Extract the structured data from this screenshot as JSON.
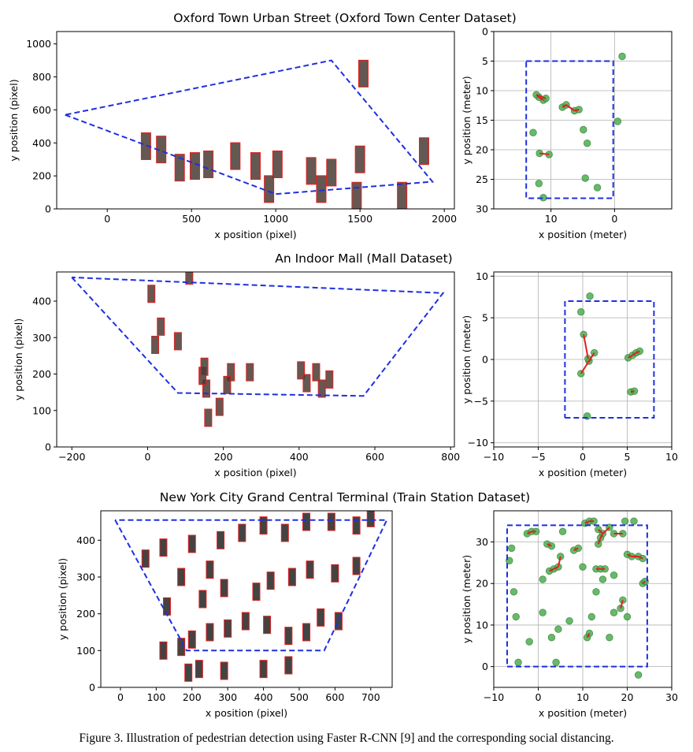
{
  "figure_caption": "Figure 3. Illustration of pedestrian detection using Faster R-CNN [9] and the corresponding social distancing.",
  "colors": {
    "region": "#1f2fe0",
    "point_fill": "#4caf50",
    "point_stroke": "#2e7d32",
    "link": "#e02020",
    "box": "#e02020",
    "grid": "#b0b0b0"
  },
  "chart_data": [
    {
      "type": "image-plot",
      "title": "Oxford Town Urban Street (Oxford Town Center Dataset)",
      "xlabel": "x position (pixel)",
      "ylabel": "y position (pixel)",
      "xlim": [
        -300,
        2060
      ],
      "ylim": [
        1075,
        0
      ],
      "xticks": [
        0,
        500,
        1000,
        1500,
        2000
      ],
      "yticks": [
        0,
        200,
        400,
        600,
        800,
        1000
      ],
      "image_extent": [
        0,
        1920,
        0,
        1080
      ],
      "region": [
        [
          -250,
          570
        ],
        [
          1000,
          90
        ],
        [
          1930,
          165
        ],
        [
          1330,
          900
        ],
        [
          -250,
          570
        ]
      ],
      "detections": [
        [
          430,
          250
        ],
        [
          520,
          260
        ],
        [
          600,
          270
        ],
        [
          760,
          320
        ],
        [
          880,
          260
        ],
        [
          1010,
          270
        ],
        [
          1210,
          230
        ],
        [
          1330,
          220
        ],
        [
          1480,
          80
        ],
        [
          1500,
          300
        ],
        [
          1880,
          350
        ],
        [
          1520,
          820
        ],
        [
          230,
          380
        ],
        [
          320,
          360
        ],
        [
          960,
          120
        ],
        [
          1270,
          120
        ],
        [
          1750,
          80
        ]
      ]
    },
    {
      "type": "scatter",
      "xlabel": "x position (meter)",
      "ylabel": "y position (meter)",
      "xlim": [
        19,
        -9
      ],
      "ylim": [
        0,
        30
      ],
      "xticks": [
        10,
        0
      ],
      "yticks": [
        0,
        5,
        10,
        15,
        20,
        25,
        30
      ],
      "grid": true,
      "region": [
        [
          13.9,
          5
        ],
        [
          0.2,
          5
        ],
        [
          0.2,
          28.2
        ],
        [
          13.9,
          28.2
        ],
        [
          13.9,
          5
        ]
      ],
      "points": [
        [
          11.2,
          28.1
        ],
        [
          11.9,
          25.7
        ],
        [
          4.6,
          24.8
        ],
        [
          2.7,
          26.4
        ],
        [
          11.8,
          20.6
        ],
        [
          10.3,
          20.8
        ],
        [
          4.3,
          18.9
        ],
        [
          12.8,
          17.1
        ],
        [
          4.9,
          16.6
        ],
        [
          -0.5,
          15.2
        ],
        [
          8.2,
          12.8
        ],
        [
          7.6,
          12.4
        ],
        [
          6.3,
          13.4
        ],
        [
          5.6,
          13.2
        ],
        [
          11.2,
          11.6
        ],
        [
          11.9,
          11.1
        ],
        [
          12.3,
          10.7
        ],
        [
          10.8,
          11.3
        ],
        [
          -1.2,
          4.2
        ]
      ],
      "links": [
        [
          [
            11.8,
            20.6
          ],
          [
            10.3,
            20.8
          ]
        ],
        [
          [
            8.2,
            12.8
          ],
          [
            7.6,
            12.4
          ]
        ],
        [
          [
            7.6,
            12.4
          ],
          [
            6.3,
            13.4
          ]
        ],
        [
          [
            6.3,
            13.4
          ],
          [
            5.6,
            13.2
          ]
        ],
        [
          [
            11.2,
            11.6
          ],
          [
            11.9,
            11.1
          ]
        ],
        [
          [
            11.9,
            11.1
          ],
          [
            12.3,
            10.7
          ]
        ],
        [
          [
            12.3,
            10.7
          ],
          [
            10.8,
            11.3
          ]
        ]
      ]
    },
    {
      "type": "image-plot",
      "title": "An Indoor Mall (Mall Dataset)",
      "xlabel": "x position (pixel)",
      "ylabel": "y position (pixel)",
      "xlim": [
        -240,
        810
      ],
      "ylim": [
        480,
        0
      ],
      "xticks": [
        -200,
        0,
        200,
        400,
        600,
        800
      ],
      "yticks": [
        0,
        100,
        200,
        300,
        400
      ],
      "image_extent": [
        0,
        640,
        0,
        480
      ],
      "region": [
        [
          -200,
          465
        ],
        [
          80,
          148
        ],
        [
          570,
          140
        ],
        [
          780,
          422
        ],
        [
          -200,
          465
        ]
      ],
      "detections": [
        [
          160,
          80
        ],
        [
          190,
          110
        ],
        [
          155,
          160
        ],
        [
          145,
          195
        ],
        [
          150,
          220
        ],
        [
          220,
          205
        ],
        [
          270,
          205
        ],
        [
          210,
          170
        ],
        [
          405,
          210
        ],
        [
          420,
          175
        ],
        [
          445,
          205
        ],
        [
          460,
          160
        ],
        [
          480,
          185
        ],
        [
          20,
          280
        ],
        [
          35,
          330
        ],
        [
          80,
          290
        ],
        [
          10,
          420
        ],
        [
          110,
          470
        ]
      ]
    },
    {
      "type": "scatter",
      "xlabel": "x position (meter)",
      "ylabel": "y position (meter)",
      "xlim": [
        -10,
        10
      ],
      "ylim": [
        10.5,
        -10.5
      ],
      "xticks": [
        -10,
        -5,
        0,
        5,
        10
      ],
      "yticks": [
        -10,
        -5,
        0,
        5,
        10
      ],
      "grid": true,
      "region": [
        [
          -2,
          -7
        ],
        [
          8,
          -7
        ],
        [
          8,
          7
        ],
        [
          -2,
          7
        ],
        [
          -2,
          -7
        ]
      ],
      "points": [
        [
          0.5,
          -6.8
        ],
        [
          5.4,
          -3.9
        ],
        [
          5.8,
          -3.8
        ],
        [
          -0.2,
          -1.7
        ],
        [
          0.7,
          -0.2
        ],
        [
          1.3,
          0.8
        ],
        [
          0.1,
          3.0
        ],
        [
          -0.2,
          5.7
        ],
        [
          0.8,
          7.6
        ],
        [
          5.1,
          0.2
        ],
        [
          5.6,
          0.5
        ],
        [
          6.0,
          0.8
        ],
        [
          6.4,
          1.0
        ],
        [
          0.6,
          0.1
        ]
      ],
      "links": [
        [
          [
            5.4,
            -3.9
          ],
          [
            5.8,
            -3.8
          ]
        ],
        [
          [
            -0.2,
            -1.7
          ],
          [
            0.7,
            -0.2
          ]
        ],
        [
          [
            0.7,
            -0.2
          ],
          [
            1.3,
            0.8
          ]
        ],
        [
          [
            0.6,
            0.1
          ],
          [
            0.1,
            3.0
          ]
        ],
        [
          [
            5.1,
            0.2
          ],
          [
            5.6,
            0.5
          ]
        ],
        [
          [
            5.6,
            0.5
          ],
          [
            6.0,
            0.8
          ]
        ],
        [
          [
            6.0,
            0.8
          ],
          [
            6.4,
            1.0
          ]
        ]
      ]
    },
    {
      "type": "image-plot",
      "title": "New York City Grand Central Terminal (Train Station Dataset)",
      "xlabel": "x position (pixel)",
      "ylabel": "y position (pixel)",
      "xlim": [
        -55,
        760
      ],
      "ylim": [
        480,
        0
      ],
      "xticks": [
        0,
        100,
        200,
        300,
        400,
        500,
        600,
        700
      ],
      "yticks": [
        0,
        100,
        200,
        300,
        400
      ],
      "image_extent": [
        0,
        720,
        0,
        480
      ],
      "region": [
        [
          -15,
          455
        ],
        [
          185,
          100
        ],
        [
          570,
          100
        ],
        [
          745,
          455
        ],
        [
          -15,
          455
        ]
      ],
      "detections": [
        [
          190,
          40
        ],
        [
          220,
          50
        ],
        [
          290,
          45
        ],
        [
          400,
          50
        ],
        [
          470,
          60
        ],
        [
          120,
          100
        ],
        [
          170,
          110
        ],
        [
          200,
          130
        ],
        [
          250,
          150
        ],
        [
          300,
          160
        ],
        [
          350,
          180
        ],
        [
          410,
          170
        ],
        [
          470,
          140
        ],
        [
          520,
          150
        ],
        [
          560,
          190
        ],
        [
          610,
          180
        ],
        [
          130,
          220
        ],
        [
          230,
          240
        ],
        [
          290,
          270
        ],
        [
          380,
          260
        ],
        [
          420,
          290
        ],
        [
          480,
          300
        ],
        [
          530,
          320
        ],
        [
          600,
          310
        ],
        [
          660,
          330
        ],
        [
          70,
          350
        ],
        [
          120,
          380
        ],
        [
          200,
          390
        ],
        [
          280,
          400
        ],
        [
          340,
          420
        ],
        [
          400,
          440
        ],
        [
          460,
          420
        ],
        [
          520,
          450
        ],
        [
          590,
          450
        ],
        [
          660,
          440
        ],
        [
          700,
          460
        ],
        [
          170,
          300
        ],
        [
          250,
          320
        ]
      ]
    },
    {
      "type": "scatter",
      "xlabel": "x position (meter)",
      "ylabel": "y position (meter)",
      "xlim": [
        -10,
        30
      ],
      "ylim": [
        37.5,
        -5
      ],
      "xticks": [
        -10,
        0,
        10,
        20,
        30
      ],
      "yticks": [
        0,
        10,
        20,
        30
      ],
      "grid": true,
      "region": [
        [
          -7,
          0
        ],
        [
          24.5,
          0
        ],
        [
          24.5,
          34
        ],
        [
          -7,
          34
        ],
        [
          -7,
          0
        ]
      ],
      "points": [
        [
          22.5,
          -2
        ],
        [
          -4.5,
          1
        ],
        [
          4,
          1
        ],
        [
          -2,
          6
        ],
        [
          3,
          7
        ],
        [
          11,
          7
        ],
        [
          11.5,
          8
        ],
        [
          16,
          7
        ],
        [
          -5,
          12
        ],
        [
          4.5,
          9
        ],
        [
          7,
          11
        ],
        [
          1,
          13
        ],
        [
          12,
          12
        ],
        [
          17,
          13
        ],
        [
          20,
          12
        ],
        [
          -5.5,
          18
        ],
        [
          18.5,
          14
        ],
        [
          19,
          16
        ],
        [
          13,
          18
        ],
        [
          23.5,
          20
        ],
        [
          24,
          20.5
        ],
        [
          1,
          21
        ],
        [
          14.5,
          21
        ],
        [
          17,
          22
        ],
        [
          2.5,
          23
        ],
        [
          3.5,
          23.5
        ],
        [
          4.5,
          24
        ],
        [
          5,
          26.5
        ],
        [
          -6.5,
          25.5
        ],
        [
          10,
          24
        ],
        [
          13,
          23.5
        ],
        [
          14,
          23.5
        ],
        [
          15,
          23.5
        ],
        [
          20,
          27
        ],
        [
          21,
          26.5
        ],
        [
          22.5,
          26.5
        ],
        [
          23.5,
          26
        ],
        [
          8,
          28
        ],
        [
          9,
          28.5
        ],
        [
          -6,
          28.5
        ],
        [
          2,
          29.5
        ],
        [
          3,
          29
        ],
        [
          13.5,
          29.5
        ],
        [
          14,
          31
        ],
        [
          14.5,
          32
        ],
        [
          13.5,
          33
        ],
        [
          17,
          32
        ],
        [
          19,
          32
        ],
        [
          10.5,
          34.5
        ],
        [
          11.5,
          35
        ],
        [
          12.5,
          35
        ],
        [
          -2.5,
          32
        ],
        [
          -1.5,
          32.5
        ],
        [
          -0.5,
          32.5
        ],
        [
          5.5,
          32.5
        ],
        [
          19.5,
          35
        ],
        [
          21.5,
          35
        ],
        [
          16,
          33.5
        ]
      ],
      "links": [
        [
          [
            11,
            7
          ],
          [
            11.5,
            8
          ]
        ],
        [
          [
            18.5,
            14
          ],
          [
            19,
            16
          ]
        ],
        [
          [
            23.5,
            20
          ],
          [
            24,
            20.5
          ]
        ],
        [
          [
            2.5,
            23
          ],
          [
            3.5,
            23.5
          ]
        ],
        [
          [
            3.5,
            23.5
          ],
          [
            4.5,
            24
          ]
        ],
        [
          [
            4.5,
            24
          ],
          [
            5,
            26.5
          ]
        ],
        [
          [
            13,
            23.5
          ],
          [
            14,
            23.5
          ]
        ],
        [
          [
            14,
            23.5
          ],
          [
            15,
            23.5
          ]
        ],
        [
          [
            20,
            27
          ],
          [
            21,
            26.5
          ]
        ],
        [
          [
            21,
            26.5
          ],
          [
            22.5,
            26.5
          ]
        ],
        [
          [
            22.5,
            26.5
          ],
          [
            23.5,
            26
          ]
        ],
        [
          [
            8,
            28
          ],
          [
            9,
            28.5
          ]
        ],
        [
          [
            2,
            29.5
          ],
          [
            3,
            29
          ]
        ],
        [
          [
            13.5,
            29.5
          ],
          [
            14,
            31
          ]
        ],
        [
          [
            14,
            31
          ],
          [
            14.5,
            32
          ]
        ],
        [
          [
            14.5,
            32
          ],
          [
            13.5,
            33
          ]
        ],
        [
          [
            10.5,
            34.5
          ],
          [
            11.5,
            35
          ]
        ],
        [
          [
            11.5,
            35
          ],
          [
            12.5,
            35
          ]
        ],
        [
          [
            -2.5,
            32
          ],
          [
            -1.5,
            32.5
          ]
        ],
        [
          [
            -1.5,
            32.5
          ],
          [
            -0.5,
            32.5
          ]
        ],
        [
          [
            17,
            32
          ],
          [
            19,
            32
          ]
        ],
        [
          [
            14.5,
            32
          ],
          [
            16,
            33.5
          ]
        ]
      ]
    }
  ]
}
